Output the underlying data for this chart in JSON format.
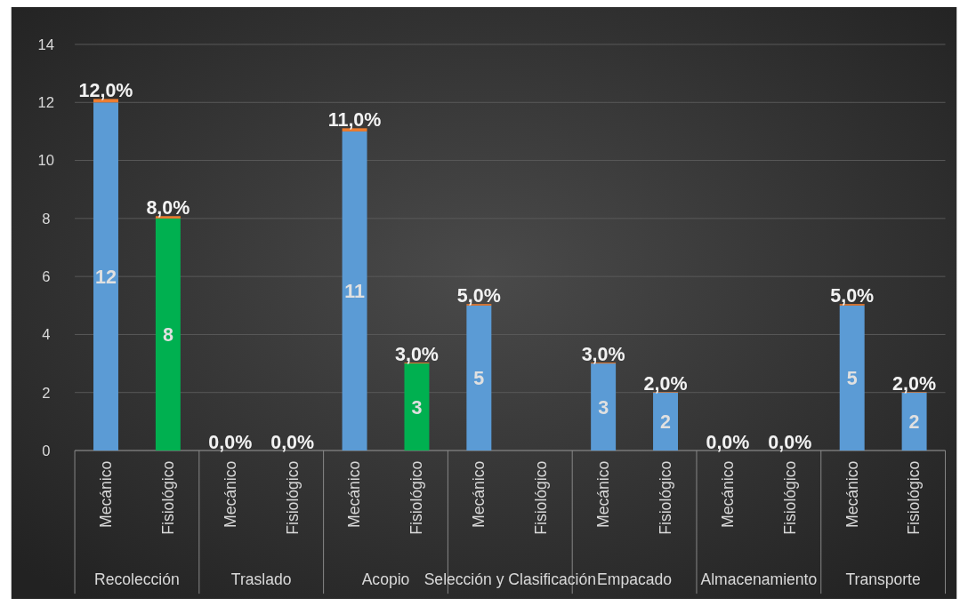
{
  "chart_data": {
    "type": "bar",
    "stacked": true,
    "categories": [
      "Mecánico",
      "Fisiológico",
      "Mecánico",
      "Fisiológico",
      "Mecánico",
      "Fisiológico",
      "Mecánico",
      "Fisiológico",
      "Mecánico",
      "Fisiológico",
      "Mecánico",
      "Fisiológico",
      "Mecánico",
      "Fisiológico"
    ],
    "annotations": [
      "Recolección",
      "Traslado",
      "Acopio",
      "Selección y Clasificación",
      "Empacado",
      "Almacenamiento",
      "Transporte"
    ],
    "series": [
      {
        "colors": [
          "#5b9bd5",
          "#00b050",
          "#5b9bd5",
          "#5b9bd5",
          "#5b9bd5",
          "#00b050",
          "#5b9bd5",
          null,
          "#5b9bd5",
          "#5b9bd5",
          "#5b9bd5",
          "#5b9bd5",
          "#5b9bd5",
          "#5b9bd5"
        ],
        "values": [
          12,
          8,
          0,
          0,
          11,
          3,
          5,
          null,
          3,
          2,
          0,
          0,
          5,
          2
        ],
        "value_labels": [
          "12",
          "8",
          null,
          null,
          "11",
          "3",
          "5",
          null,
          "3",
          "2",
          null,
          null,
          "5",
          "2"
        ]
      },
      {
        "color": "#ed7d31",
        "values": [
          0.12,
          0.08,
          0,
          0,
          0.11,
          0.03,
          0.05,
          null,
          0.03,
          0.02,
          0,
          0,
          0.05,
          0.02
        ],
        "value_labels": [
          "12,0%",
          "8,0%",
          "0,0%",
          "0,0%",
          "11,0%",
          "3,0%",
          "5,0%",
          null,
          "3,0%",
          "2,0%",
          "0,0%",
          "0,0%",
          "5,0%",
          "2,0%"
        ]
      }
    ],
    "ylim": [
      0,
      14
    ],
    "yticks": [
      0,
      2,
      4,
      6,
      8,
      10,
      12,
      14
    ],
    "grid": "y"
  }
}
